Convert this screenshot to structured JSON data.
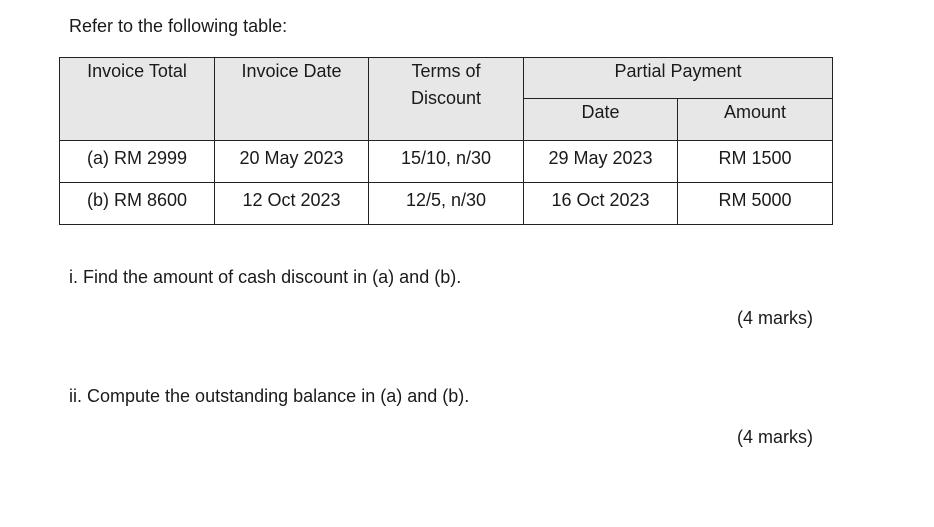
{
  "intro": "Refer to the following table:",
  "table": {
    "headers": {
      "invoice_total": "Invoice Total",
      "invoice_date": "Invoice Date",
      "terms_line1": "Terms of",
      "terms_line2": "Discount",
      "partial_payment": "Partial Payment",
      "pp_date": "Date",
      "pp_amount": "Amount"
    },
    "rows": [
      [
        "(a) RM 2999",
        "20 May 2023",
        "15/10, n/30",
        "29 May 2023",
        "RM 1500"
      ],
      [
        "(b) RM 8600",
        "12 Oct 2023",
        "12/5, n/30",
        "16 Oct 2023",
        "RM 5000"
      ]
    ]
  },
  "questions": [
    {
      "text": "i. Find the amount of cash discount in (a) and (b).",
      "marks": "(4 marks)"
    },
    {
      "text": "ii. Compute the outstanding balance in (a) and (b).",
      "marks": "(4 marks)"
    }
  ]
}
